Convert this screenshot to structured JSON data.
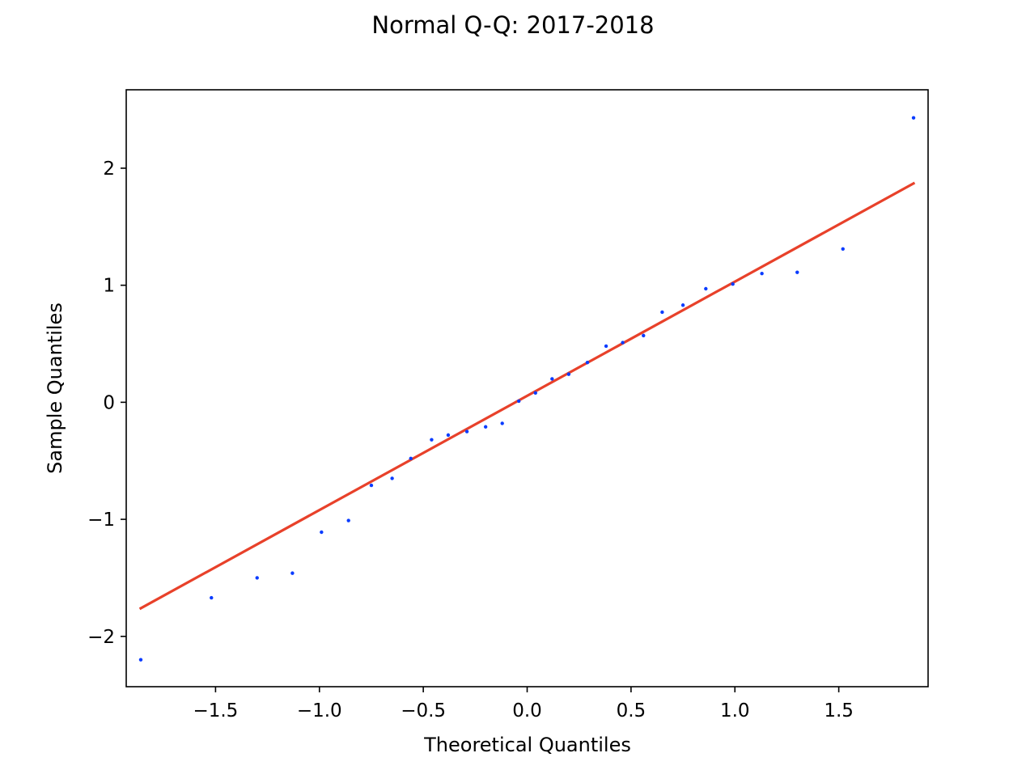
{
  "chart_data": {
    "type": "scatter",
    "title": "Normal Q-Q: 2017-2018",
    "xlabel": "Theoretical Quantiles",
    "ylabel": "Sample Quantiles",
    "xlim": [
      -1.93,
      1.93
    ],
    "ylim": [
      -2.43,
      2.67
    ],
    "x_ticks": [
      -1.5,
      -1.0,
      -0.5,
      0.0,
      0.5,
      1.0,
      1.5
    ],
    "x_tick_labels": [
      "−1.5",
      "−1.0",
      "−0.5",
      "0.0",
      "0.5",
      "1.0",
      "1.5"
    ],
    "y_ticks": [
      -2,
      -1,
      0,
      1,
      2
    ],
    "y_tick_labels": [
      "−2",
      "−1",
      "0",
      "1",
      "2"
    ],
    "grid": false,
    "marker_color": "#0a3cff",
    "line_color": "#e8412a",
    "reference_line": {
      "x": [
        -1.86,
        1.86
      ],
      "y": [
        -1.76,
        1.87
      ]
    },
    "points": [
      {
        "x": -1.86,
        "y": -2.2
      },
      {
        "x": -1.52,
        "y": -1.67
      },
      {
        "x": -1.3,
        "y": -1.5
      },
      {
        "x": -1.13,
        "y": -1.46
      },
      {
        "x": -0.99,
        "y": -1.11
      },
      {
        "x": -0.86,
        "y": -1.01
      },
      {
        "x": -0.75,
        "y": -0.71
      },
      {
        "x": -0.65,
        "y": -0.65
      },
      {
        "x": -0.56,
        "y": -0.48
      },
      {
        "x": -0.46,
        "y": -0.32
      },
      {
        "x": -0.38,
        "y": -0.28
      },
      {
        "x": -0.29,
        "y": -0.25
      },
      {
        "x": -0.2,
        "y": -0.21
      },
      {
        "x": -0.12,
        "y": -0.18
      },
      {
        "x": -0.04,
        "y": 0.01
      },
      {
        "x": 0.04,
        "y": 0.08
      },
      {
        "x": 0.12,
        "y": 0.2
      },
      {
        "x": 0.2,
        "y": 0.24
      },
      {
        "x": 0.29,
        "y": 0.34
      },
      {
        "x": 0.38,
        "y": 0.48
      },
      {
        "x": 0.46,
        "y": 0.51
      },
      {
        "x": 0.56,
        "y": 0.57
      },
      {
        "x": 0.65,
        "y": 0.77
      },
      {
        "x": 0.75,
        "y": 0.83
      },
      {
        "x": 0.86,
        "y": 0.97
      },
      {
        "x": 0.99,
        "y": 1.01
      },
      {
        "x": 1.13,
        "y": 1.1
      },
      {
        "x": 1.3,
        "y": 1.11
      },
      {
        "x": 1.52,
        "y": 1.31
      },
      {
        "x": 1.86,
        "y": 2.43
      }
    ]
  }
}
